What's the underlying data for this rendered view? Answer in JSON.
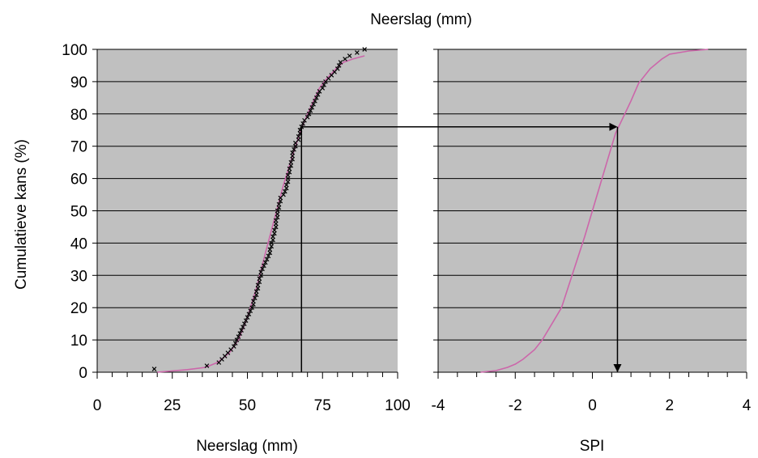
{
  "figure": {
    "top_label": "Neerslag (mm)",
    "y_axis_label": "Cumulatieve kans (%)",
    "pink_color": "#CC66AA",
    "plot_bg": "#C0C0C0"
  },
  "chart_data": [
    {
      "type": "scatter",
      "title": "",
      "xlabel": "Neerslag (mm)",
      "ylabel": "Cumulatieve kans (%)",
      "xlim": [
        0,
        100
      ],
      "ylim": [
        0,
        100
      ],
      "x_ticks": [
        0,
        25,
        50,
        75,
        100
      ],
      "y_ticks": [
        0,
        10,
        20,
        30,
        40,
        50,
        60,
        70,
        80,
        90,
        100
      ],
      "grid": "horizontal",
      "series": [
        {
          "kind": "points",
          "marker": "x",
          "color": "#000000",
          "points": [
            [
              19,
              1
            ],
            [
              36.5,
              2
            ],
            [
              40.5,
              3
            ],
            [
              41.5,
              4
            ],
            [
              42.5,
              5
            ],
            [
              43.5,
              6
            ],
            [
              44.5,
              7
            ],
            [
              45.5,
              8
            ],
            [
              46,
              9
            ],
            [
              46.5,
              10
            ],
            [
              47,
              11
            ],
            [
              47.5,
              12
            ],
            [
              48,
              13
            ],
            [
              48.5,
              14
            ],
            [
              49,
              15
            ],
            [
              49.5,
              16
            ],
            [
              50,
              17
            ],
            [
              50.5,
              18
            ],
            [
              51,
              19
            ],
            [
              51.5,
              20
            ],
            [
              52,
              21
            ],
            [
              52,
              22
            ],
            [
              52.5,
              23
            ],
            [
              53,
              24
            ],
            [
              53,
              25
            ],
            [
              53.5,
              26
            ],
            [
              53.5,
              27
            ],
            [
              54,
              28
            ],
            [
              54,
              29
            ],
            [
              54.5,
              30
            ],
            [
              54.5,
              31
            ],
            [
              55,
              32
            ],
            [
              55.5,
              33
            ],
            [
              56,
              34
            ],
            [
              56.5,
              35
            ],
            [
              57,
              36
            ],
            [
              57.5,
              37
            ],
            [
              57.5,
              38
            ],
            [
              58,
              39
            ],
            [
              58,
              40
            ],
            [
              58.5,
              41
            ],
            [
              58.5,
              42
            ],
            [
              59,
              43
            ],
            [
              59,
              44
            ],
            [
              59.5,
              45
            ],
            [
              59.5,
              46
            ],
            [
              59.5,
              47
            ],
            [
              60,
              48
            ],
            [
              60,
              49
            ],
            [
              60,
              50
            ],
            [
              60.5,
              51
            ],
            [
              60.5,
              52
            ],
            [
              61,
              53
            ],
            [
              61,
              54
            ],
            [
              62,
              55
            ],
            [
              62.5,
              56
            ],
            [
              63,
              57
            ],
            [
              63,
              58
            ],
            [
              63.5,
              59
            ],
            [
              63.5,
              60
            ],
            [
              63.5,
              61
            ],
            [
              64,
              62
            ],
            [
              64,
              63
            ],
            [
              64.5,
              64
            ],
            [
              64.5,
              65
            ],
            [
              65,
              66
            ],
            [
              65,
              67
            ],
            [
              65,
              68
            ],
            [
              65.5,
              69
            ],
            [
              66,
              70
            ],
            [
              66,
              71
            ],
            [
              67,
              72
            ],
            [
              67,
              73
            ],
            [
              67.5,
              74
            ],
            [
              67.5,
              75
            ],
            [
              68,
              76
            ],
            [
              68.5,
              77
            ],
            [
              69,
              78
            ],
            [
              70,
              79
            ],
            [
              70.5,
              80
            ],
            [
              71,
              81
            ],
            [
              71.5,
              82
            ],
            [
              72,
              83
            ],
            [
              72.5,
              84
            ],
            [
              73,
              85
            ],
            [
              73.5,
              86
            ],
            [
              74,
              87
            ],
            [
              75,
              88
            ],
            [
              75.5,
              89
            ],
            [
              76,
              90
            ],
            [
              77,
              91
            ],
            [
              78,
              92
            ],
            [
              79,
              93
            ],
            [
              80,
              94
            ],
            [
              80.5,
              95
            ],
            [
              81,
              96
            ],
            [
              82.5,
              97
            ],
            [
              84,
              98
            ],
            [
              86.5,
              99
            ],
            [
              89,
              100
            ]
          ]
        },
        {
          "kind": "line",
          "color": "#CC66AA",
          "points": [
            [
              20,
              0
            ],
            [
              30,
              0.8
            ],
            [
              36,
              1.5
            ],
            [
              40,
              3
            ],
            [
              44,
              6
            ],
            [
              47,
              10
            ],
            [
              50,
              17
            ],
            [
              53,
              26
            ],
            [
              56,
              37
            ],
            [
              58,
              44
            ],
            [
              60,
              51
            ],
            [
              62,
              58
            ],
            [
              64,
              64
            ],
            [
              66,
              70
            ],
            [
              68,
              75.5
            ],
            [
              70,
              80
            ],
            [
              72,
              84
            ],
            [
              74,
              88
            ],
            [
              76,
              90.5
            ],
            [
              78,
              92.5
            ],
            [
              80,
              94.5
            ],
            [
              82,
              96
            ],
            [
              85,
              97
            ],
            [
              89,
              98
            ]
          ]
        },
        {
          "kind": "arrow-guide",
          "color": "#000000",
          "points": [
            [
              68,
              0
            ],
            [
              68,
              76
            ]
          ]
        }
      ]
    },
    {
      "type": "line",
      "title": "",
      "xlabel": "SPI",
      "ylabel": "",
      "xlim": [
        -4,
        4
      ],
      "ylim": [
        0,
        100
      ],
      "x_ticks": [
        -4,
        -2,
        0,
        2,
        4
      ],
      "grid": "horizontal",
      "series": [
        {
          "kind": "line",
          "color": "#CC66AA",
          "points": [
            [
              -2.9,
              0
            ],
            [
              -2.5,
              0.5
            ],
            [
              -2.2,
              1.5
            ],
            [
              -2.0,
              2.5
            ],
            [
              -1.8,
              4
            ],
            [
              -1.5,
              7
            ],
            [
              -1.3,
              10
            ],
            [
              -1.0,
              16
            ],
            [
              -0.8,
              20
            ],
            [
              -0.5,
              31
            ],
            [
              -0.2,
              42
            ],
            [
              0,
              50
            ],
            [
              0.2,
              58
            ],
            [
              0.4,
              66
            ],
            [
              0.6,
              74
            ],
            [
              0.8,
              79
            ],
            [
              1.0,
              84
            ],
            [
              1.2,
              89.5
            ],
            [
              1.5,
              94
            ],
            [
              1.8,
              97
            ],
            [
              2.0,
              98.5
            ],
            [
              2.5,
              99.5
            ],
            [
              3.0,
              100
            ]
          ]
        },
        {
          "kind": "arrow-guide",
          "color": "#000000",
          "points": [
            [
              0.65,
              76
            ],
            [
              0.65,
              0
            ]
          ]
        }
      ]
    }
  ],
  "connector_arrow": {
    "from_value": [
      68,
      76
    ],
    "to_value": [
      0.65,
      76
    ]
  }
}
